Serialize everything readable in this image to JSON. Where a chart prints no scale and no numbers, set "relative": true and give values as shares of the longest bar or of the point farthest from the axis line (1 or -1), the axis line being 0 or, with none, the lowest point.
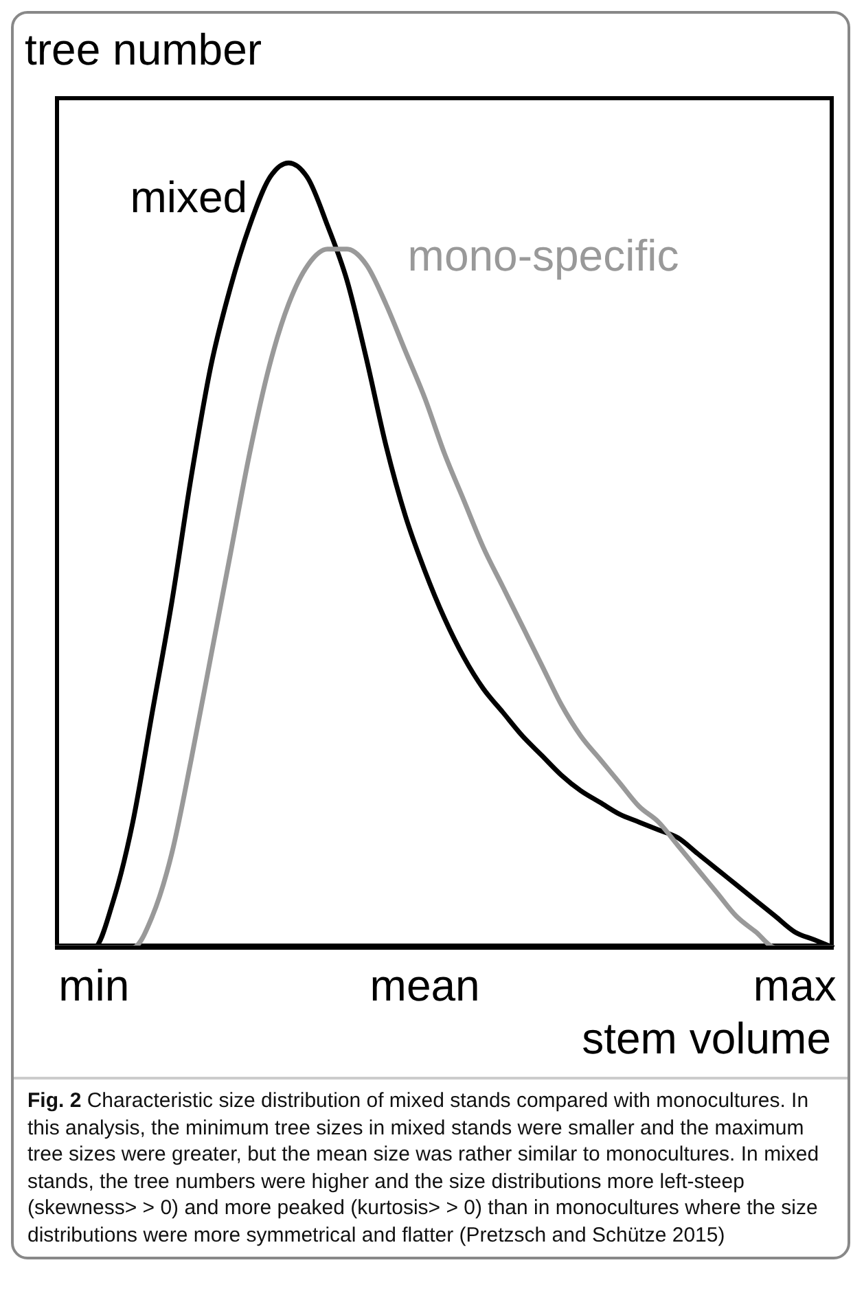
{
  "chart_data": {
    "type": "line",
    "relative": true,
    "ylabel": "tree number",
    "xlabel": "stem volume",
    "categories": [
      null,
      null,
      "min",
      null,
      null,
      null,
      null,
      null,
      null,
      null,
      null,
      null,
      null,
      null,
      null,
      null,
      null,
      null,
      null,
      "mean",
      null,
      null,
      null,
      null,
      null,
      null,
      null,
      null,
      null,
      null,
      null,
      null,
      null,
      null,
      null,
      null,
      null,
      null,
      "max",
      null,
      null
    ],
    "series": [
      {
        "name": "mixed",
        "color": "#000000",
        "values": [
          0,
          0,
          0,
          0.06,
          0.16,
          0.3,
          0.44,
          0.6,
          0.74,
          0.84,
          0.92,
          0.98,
          1.0,
          0.98,
          0.92,
          0.85,
          0.75,
          0.64,
          0.55,
          0.48,
          0.42,
          0.37,
          0.33,
          0.3,
          0.27,
          0.245,
          0.22,
          0.2,
          0.185,
          0.17,
          0.16,
          0.15,
          0.14,
          0.12,
          0.1,
          0.08,
          0.06,
          0.04,
          0.02,
          0.01,
          0
        ]
      },
      {
        "name": "mono-specific",
        "color": "#999999",
        "values": [
          0,
          0,
          0,
          0,
          0,
          0.04,
          0.12,
          0.24,
          0.37,
          0.5,
          0.63,
          0.74,
          0.82,
          0.87,
          0.89,
          0.89,
          0.87,
          0.82,
          0.76,
          0.7,
          0.63,
          0.57,
          0.51,
          0.46,
          0.41,
          0.36,
          0.31,
          0.27,
          0.24,
          0.21,
          0.18,
          0.16,
          0.13,
          0.1,
          0.07,
          0.04,
          0.02,
          0,
          0,
          0,
          0
        ]
      }
    ],
    "legend": false,
    "grid": false,
    "marker": "none",
    "line_style": "solid",
    "annotations": [
      "Fig. 2 Characteristic size distribution of mixed stands compared with monocultures. In this analysis, the minimum tree sizes in mixed stands were smaller and the maximum tree sizes were greater, but the mean size was rather similar to monocultures. In mixed stands, the tree numbers were higher and the size distributions more left-steep (skewness> > 0) and more peaked (kurtosis> > 0) than in monocultures where the size distributions were more symmetrical and flatter (Pretzsch and Schütze 2015)"
    ]
  }
}
